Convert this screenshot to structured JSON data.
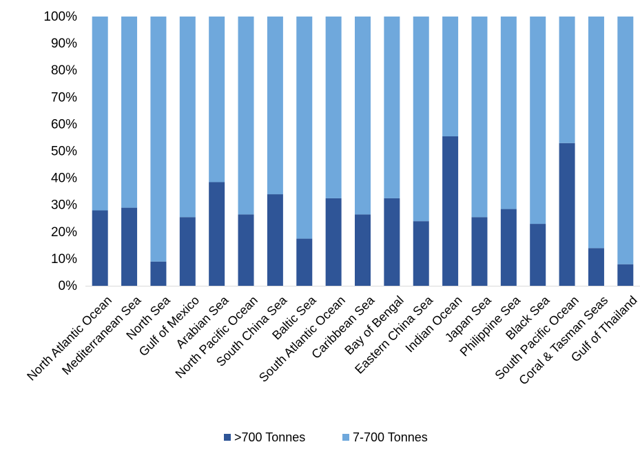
{
  "chart_data": {
    "type": "bar",
    "stacked": true,
    "percent_stacked": true,
    "categories": [
      "North Atlantic Ocean",
      "Mediterranean Sea",
      "North Sea",
      "Gulf of Mexico",
      "Arabian Sea",
      "North Pacific Ocean",
      "South China Sea",
      "Baltic Sea",
      "South Atlantic Ocean",
      "Caribbean Sea",
      "Bay of Bengal",
      "Eastern China Sea",
      "Indian Ocean",
      "Japan Sea",
      "Philippine Sea",
      "Black Sea",
      "South Pacific Ocean",
      "Coral & Tasman Seas",
      "Gulf of Thailand"
    ],
    "series": [
      {
        "name": ">700 Tonnes",
        "color": "#2f5597",
        "values": [
          28,
          29,
          9,
          25.5,
          38.5,
          26.5,
          34,
          17.5,
          32.5,
          26.5,
          32.5,
          24,
          55.5,
          25.5,
          28.5,
          23,
          53,
          14,
          8
        ]
      },
      {
        "name": "7-700 Tonnes",
        "color": "#6fa8dc",
        "values": [
          72,
          71,
          91,
          74.5,
          61.5,
          73.5,
          66,
          82.5,
          67.5,
          73.5,
          67.5,
          76,
          44.5,
          74.5,
          71.5,
          77,
          47,
          86,
          92
        ]
      }
    ],
    "ylim": [
      0,
      100
    ],
    "yticks": [
      "0%",
      "10%",
      "20%",
      "30%",
      "40%",
      "50%",
      "60%",
      "70%",
      "80%",
      "90%",
      "100%"
    ],
    "legend_position": "bottom",
    "grid": false
  }
}
